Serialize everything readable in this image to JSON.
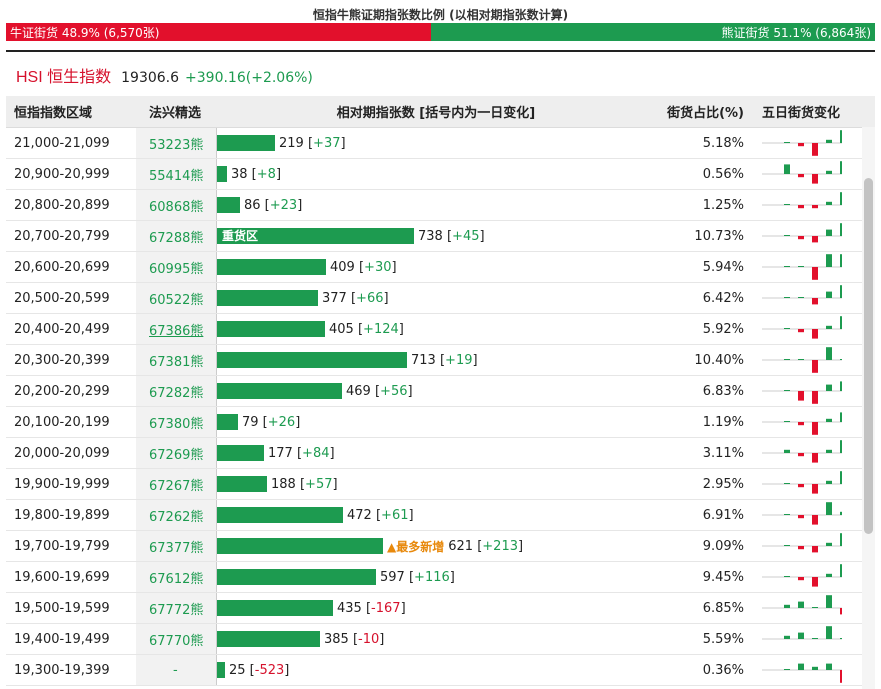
{
  "header": {
    "title": "恒指牛熊证期指张数比例 (以相对期指张数计算)",
    "bull_label": "牛证街货 48.9% (6,570张)",
    "bear_label": "熊证街货 51.1% (6,864张)"
  },
  "index": {
    "name": "HSI 恒生指数",
    "value": "19306.6",
    "change": "+390.16(+2.06%)"
  },
  "columns": {
    "range": "恒指指数区域",
    "bear": "法兴精选",
    "bar": "相对期指张数 [括号内为一日变化]",
    "pct": "街货占比(%)",
    "five": "五日街货变化"
  },
  "colors": {
    "bull_red": "#e2102c",
    "bear_green": "#1d9b50",
    "highlight_orange": "#e8890c"
  },
  "rows": [
    {
      "range": "21,000-21,099",
      "bear": "53223熊",
      "contracts": 219,
      "change": "+37",
      "pct": "5.18%",
      "five": [
        0,
        -1,
        -4,
        1,
        4
      ]
    },
    {
      "range": "20,900-20,999",
      "bear": "55414熊",
      "contracts": 38,
      "change": "+8",
      "pct": "0.56%",
      "five": [
        3,
        -1,
        -3,
        1,
        4
      ]
    },
    {
      "range": "20,800-20,899",
      "bear": "60868熊",
      "contracts": 86,
      "change": "+23",
      "pct": "1.25%",
      "five": [
        0,
        -1,
        -1,
        1,
        4
      ]
    },
    {
      "range": "20,700-20,799",
      "bear": "67288熊",
      "contracts": 738,
      "change": "+45",
      "pct": "10.73%",
      "five": [
        0,
        -1,
        -2,
        2,
        4
      ],
      "tag": "重货区"
    },
    {
      "range": "20,600-20,699",
      "bear": "60995熊",
      "contracts": 409,
      "change": "+30",
      "pct": "5.94%",
      "five": [
        0,
        0,
        -4,
        4,
        4
      ]
    },
    {
      "range": "20,500-20,599",
      "bear": "60522熊",
      "contracts": 377,
      "change": "+66",
      "pct": "6.42%",
      "five": [
        0,
        0,
        -2,
        2,
        4
      ]
    },
    {
      "range": "20,400-20,499",
      "bear": "67386熊",
      "contracts": 405,
      "change": "+124",
      "pct": "5.92%",
      "five": [
        0,
        -1,
        -3,
        1,
        4
      ],
      "underline": true
    },
    {
      "range": "20,300-20,399",
      "bear": "67381熊",
      "contracts": 713,
      "change": "+19",
      "pct": "10.40%",
      "five": [
        0,
        0,
        -4,
        4,
        0
      ]
    },
    {
      "range": "20,200-20,299",
      "bear": "67282熊",
      "contracts": 469,
      "change": "+56",
      "pct": "6.83%",
      "five": [
        0,
        -3,
        -4,
        2,
        3
      ]
    },
    {
      "range": "20,100-20,199",
      "bear": "67380熊",
      "contracts": 79,
      "change": "+26",
      "pct": "1.19%",
      "five": [
        0,
        -1,
        -4,
        1,
        3
      ]
    },
    {
      "range": "20,000-20,099",
      "bear": "67269熊",
      "contracts": 177,
      "change": "+84",
      "pct": "3.11%",
      "five": [
        1,
        -1,
        -3,
        1,
        4
      ]
    },
    {
      "range": "19,900-19,999",
      "bear": "67267熊",
      "contracts": 188,
      "change": "+57",
      "pct": "2.95%",
      "five": [
        0,
        -1,
        -3,
        1,
        4
      ]
    },
    {
      "range": "19,800-19,899",
      "bear": "67262熊",
      "contracts": 472,
      "change": "+61",
      "pct": "6.91%",
      "five": [
        0,
        -1,
        -3,
        4,
        1
      ]
    },
    {
      "range": "19,700-19,799",
      "bear": "67377熊",
      "contracts": 621,
      "change": "+213",
      "pct": "9.09%",
      "five": [
        0,
        -1,
        -2,
        1,
        4
      ],
      "extra": "▲最多新增"
    },
    {
      "range": "19,600-19,699",
      "bear": "67612熊",
      "contracts": 597,
      "change": "+116",
      "pct": "9.45%",
      "five": [
        0,
        -1,
        -3,
        1,
        4
      ]
    },
    {
      "range": "19,500-19,599",
      "bear": "67772熊",
      "contracts": 435,
      "change": "-167",
      "pct": "6.85%",
      "five": [
        1,
        2,
        0,
        4,
        -2
      ]
    },
    {
      "range": "19,400-19,499",
      "bear": "67770熊",
      "contracts": 385,
      "change": "-10",
      "pct": "5.59%",
      "five": [
        1,
        2,
        0,
        4,
        0
      ]
    },
    {
      "range": "19,300-19,399",
      "bear": "-",
      "contracts": 25,
      "change": "-523",
      "pct": "0.36%",
      "five": [
        0,
        2,
        1,
        2,
        -4
      ]
    }
  ]
}
